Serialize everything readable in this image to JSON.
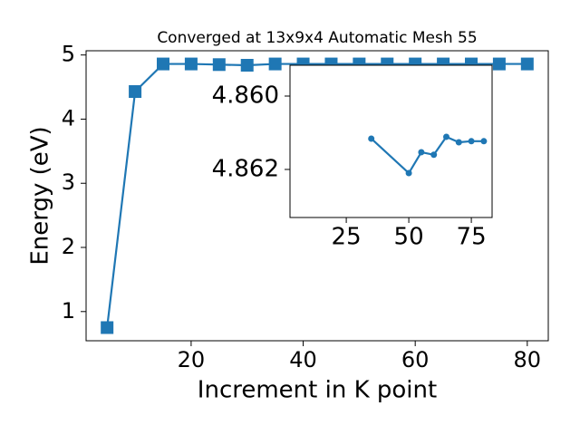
{
  "chart_data": [
    {
      "type": "line",
      "title": "Converged at 13x9x4 Automatic Mesh 55",
      "x_label": "Increment in K point",
      "y_label": "Energy (eV)",
      "x": [
        5,
        10,
        15,
        20,
        25,
        30,
        35,
        40,
        45,
        50,
        55,
        60,
        65,
        70,
        75,
        80
      ],
      "series": [
        {
          "color": "#1f77b4",
          "marker": "square",
          "values": [
            0.75,
            4.43,
            4.86,
            4.86,
            4.85,
            4.84,
            4.86,
            4.86,
            4.86,
            4.86,
            4.86,
            4.86,
            4.86,
            4.86,
            4.86,
            4.86
          ]
        }
      ],
      "xlim": [
        1.25,
        83.75
      ],
      "xticks": [
        20,
        40,
        60,
        80
      ],
      "ylim": [
        0.545,
        5.066
      ],
      "yticks": [
        1,
        2,
        3,
        4,
        5
      ]
    },
    {
      "type": "line",
      "x": [
        35,
        50,
        55,
        60,
        65,
        70,
        75,
        80
      ],
      "series": [
        {
          "color": "#1f77b4",
          "marker": "circle",
          "values": [
            4.86116,
            4.8621,
            4.86153,
            4.8616,
            4.86111,
            4.86126,
            4.86123,
            4.86123
          ]
        }
      ],
      "xlim": [
        2.5,
        83.3
      ],
      "xticks": [
        25,
        50,
        75
      ],
      "ylim": [
        4.86331,
        4.85916
      ],
      "yticks": [
        {
          "value": 4.86,
          "label": "4.860"
        },
        {
          "value": 4.862,
          "label": "4.862"
        }
      ]
    }
  ]
}
